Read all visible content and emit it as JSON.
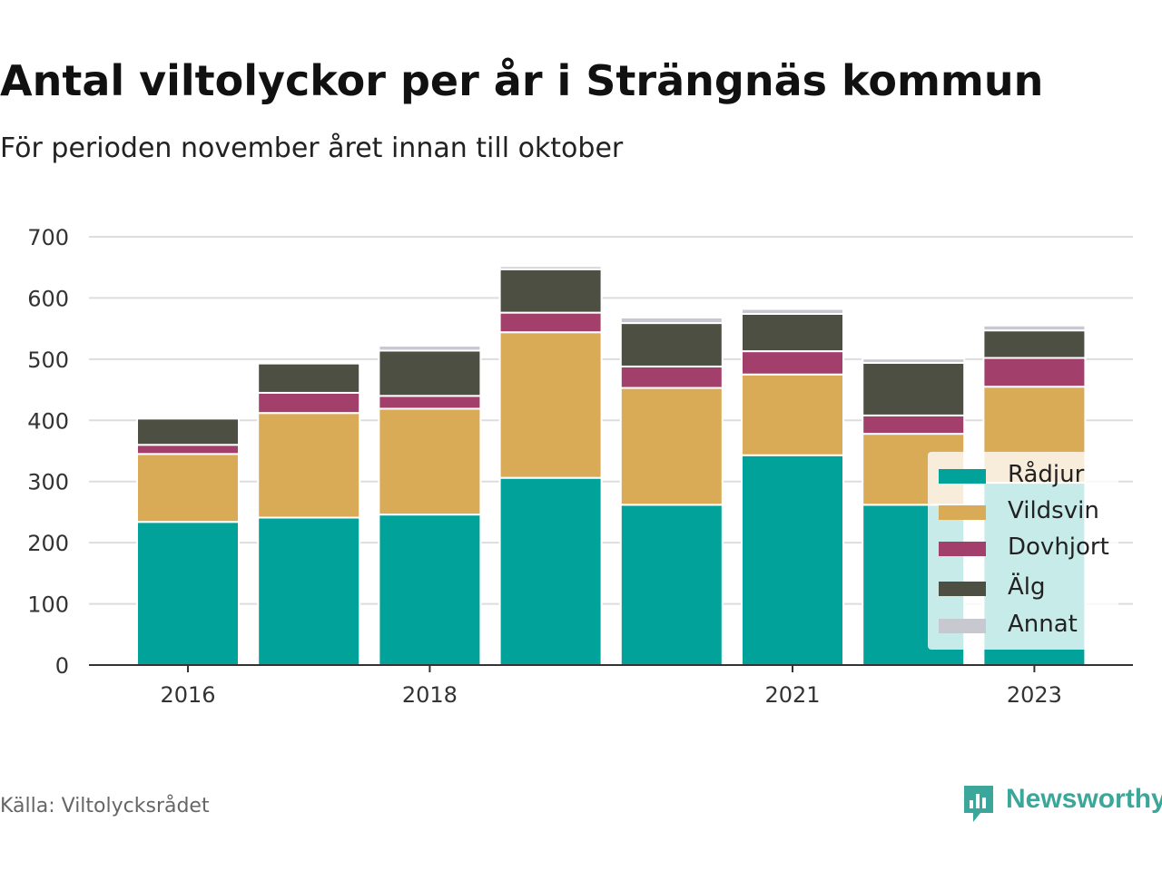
{
  "title": "Antal viltolyckor per år i Strängnäs kommun",
  "subtitle": "För perioden november året innan till oktober",
  "source": "Källa: Viltolycksrådet",
  "brand": {
    "name": "Newsworthy",
    "icon": "newsworthy-bar-chart-icon",
    "color": "#3aa79a"
  },
  "chart_data": {
    "type": "bar",
    "stacked": true,
    "title": "Antal viltolyckor per år i Strängnäs kommun",
    "subtitle": "För perioden november året innan till oktober",
    "categories": [
      "2016",
      "2017",
      "2018",
      "2019",
      "2020",
      "2021",
      "2022",
      "2023"
    ],
    "x_tick_labels": [
      "2016",
      "",
      "2018",
      "",
      "",
      "2021",
      "",
      "2023"
    ],
    "series": [
      {
        "name": "Rådjur",
        "color": "#00a29a",
        "values": [
          234,
          241,
          246,
          306,
          262,
          343,
          262,
          298
        ]
      },
      {
        "name": "Vildsvin",
        "color": "#d9ab57",
        "values": [
          111,
          171,
          173,
          238,
          191,
          132,
          116,
          157
        ]
      },
      {
        "name": "Dovhjort",
        "color": "#a23f6a",
        "values": [
          15,
          33,
          21,
          32,
          35,
          38,
          30,
          47
        ]
      },
      {
        "name": "Älg",
        "color": "#4d4f42",
        "values": [
          43,
          48,
          74,
          71,
          71,
          61,
          86,
          45
        ]
      },
      {
        "name": "Annat",
        "color": "#c8c8d0",
        "values": [
          3,
          3,
          8,
          5,
          9,
          8,
          7,
          8
        ]
      }
    ],
    "ylim": [
      0,
      700
    ],
    "yticks": [
      0,
      100,
      200,
      300,
      400,
      500,
      600,
      700
    ],
    "grid": true,
    "legend": "bottom-right"
  }
}
